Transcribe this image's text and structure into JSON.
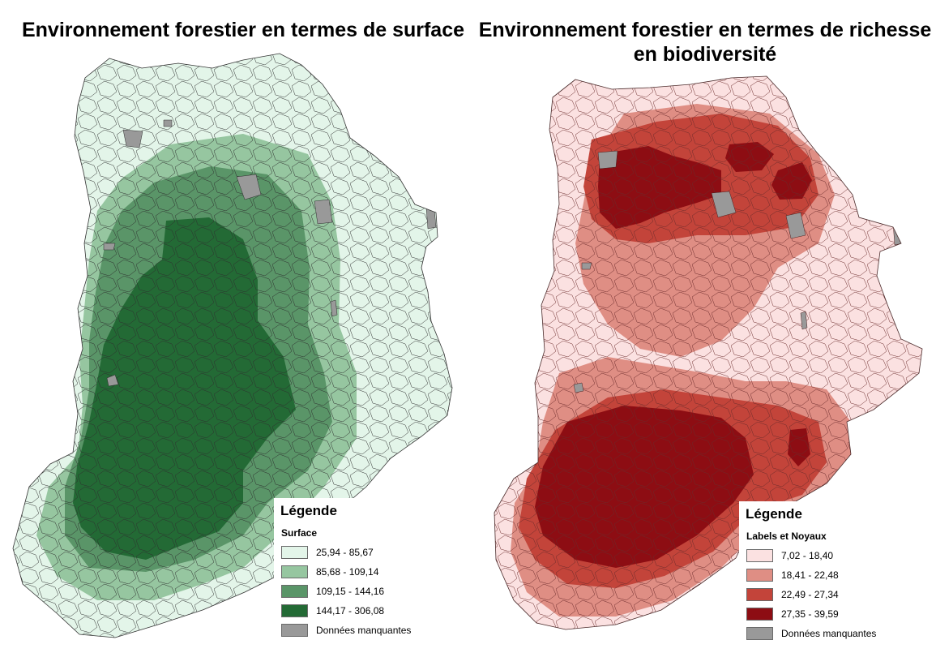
{
  "maps": [
    {
      "title": "Environnement forestier en termes de surface",
      "legend": {
        "heading": "Légende",
        "field": "Surface",
        "classes": [
          {
            "label": "25,94 - 85,67",
            "color": "#e3f5e9"
          },
          {
            "label": "85,68 - 109,14",
            "color": "#96c6a0"
          },
          {
            "label": "109,15 - 144,16",
            "color": "#5a9568"
          },
          {
            "label": "144,17 - 306,08",
            "color": "#236a35"
          },
          {
            "label": "Données manquantes",
            "color": "#999999"
          }
        ]
      }
    },
    {
      "title": "Environnement forestier en termes de richesse en biodiversité",
      "legend": {
        "heading": "Légende",
        "field": "Labels et Noyaux",
        "classes": [
          {
            "label": "7,02 - 18,40",
            "color": "#fbe1e1"
          },
          {
            "label": "18,41 - 22,48",
            "color": "#df8e84"
          },
          {
            "label": "22,49 - 27,34",
            "color": "#c3443a"
          },
          {
            "label": "27,35 - 39,59",
            "color": "#8d0d13"
          },
          {
            "label": "Données manquantes",
            "color": "#999999"
          }
        ]
      }
    }
  ]
}
